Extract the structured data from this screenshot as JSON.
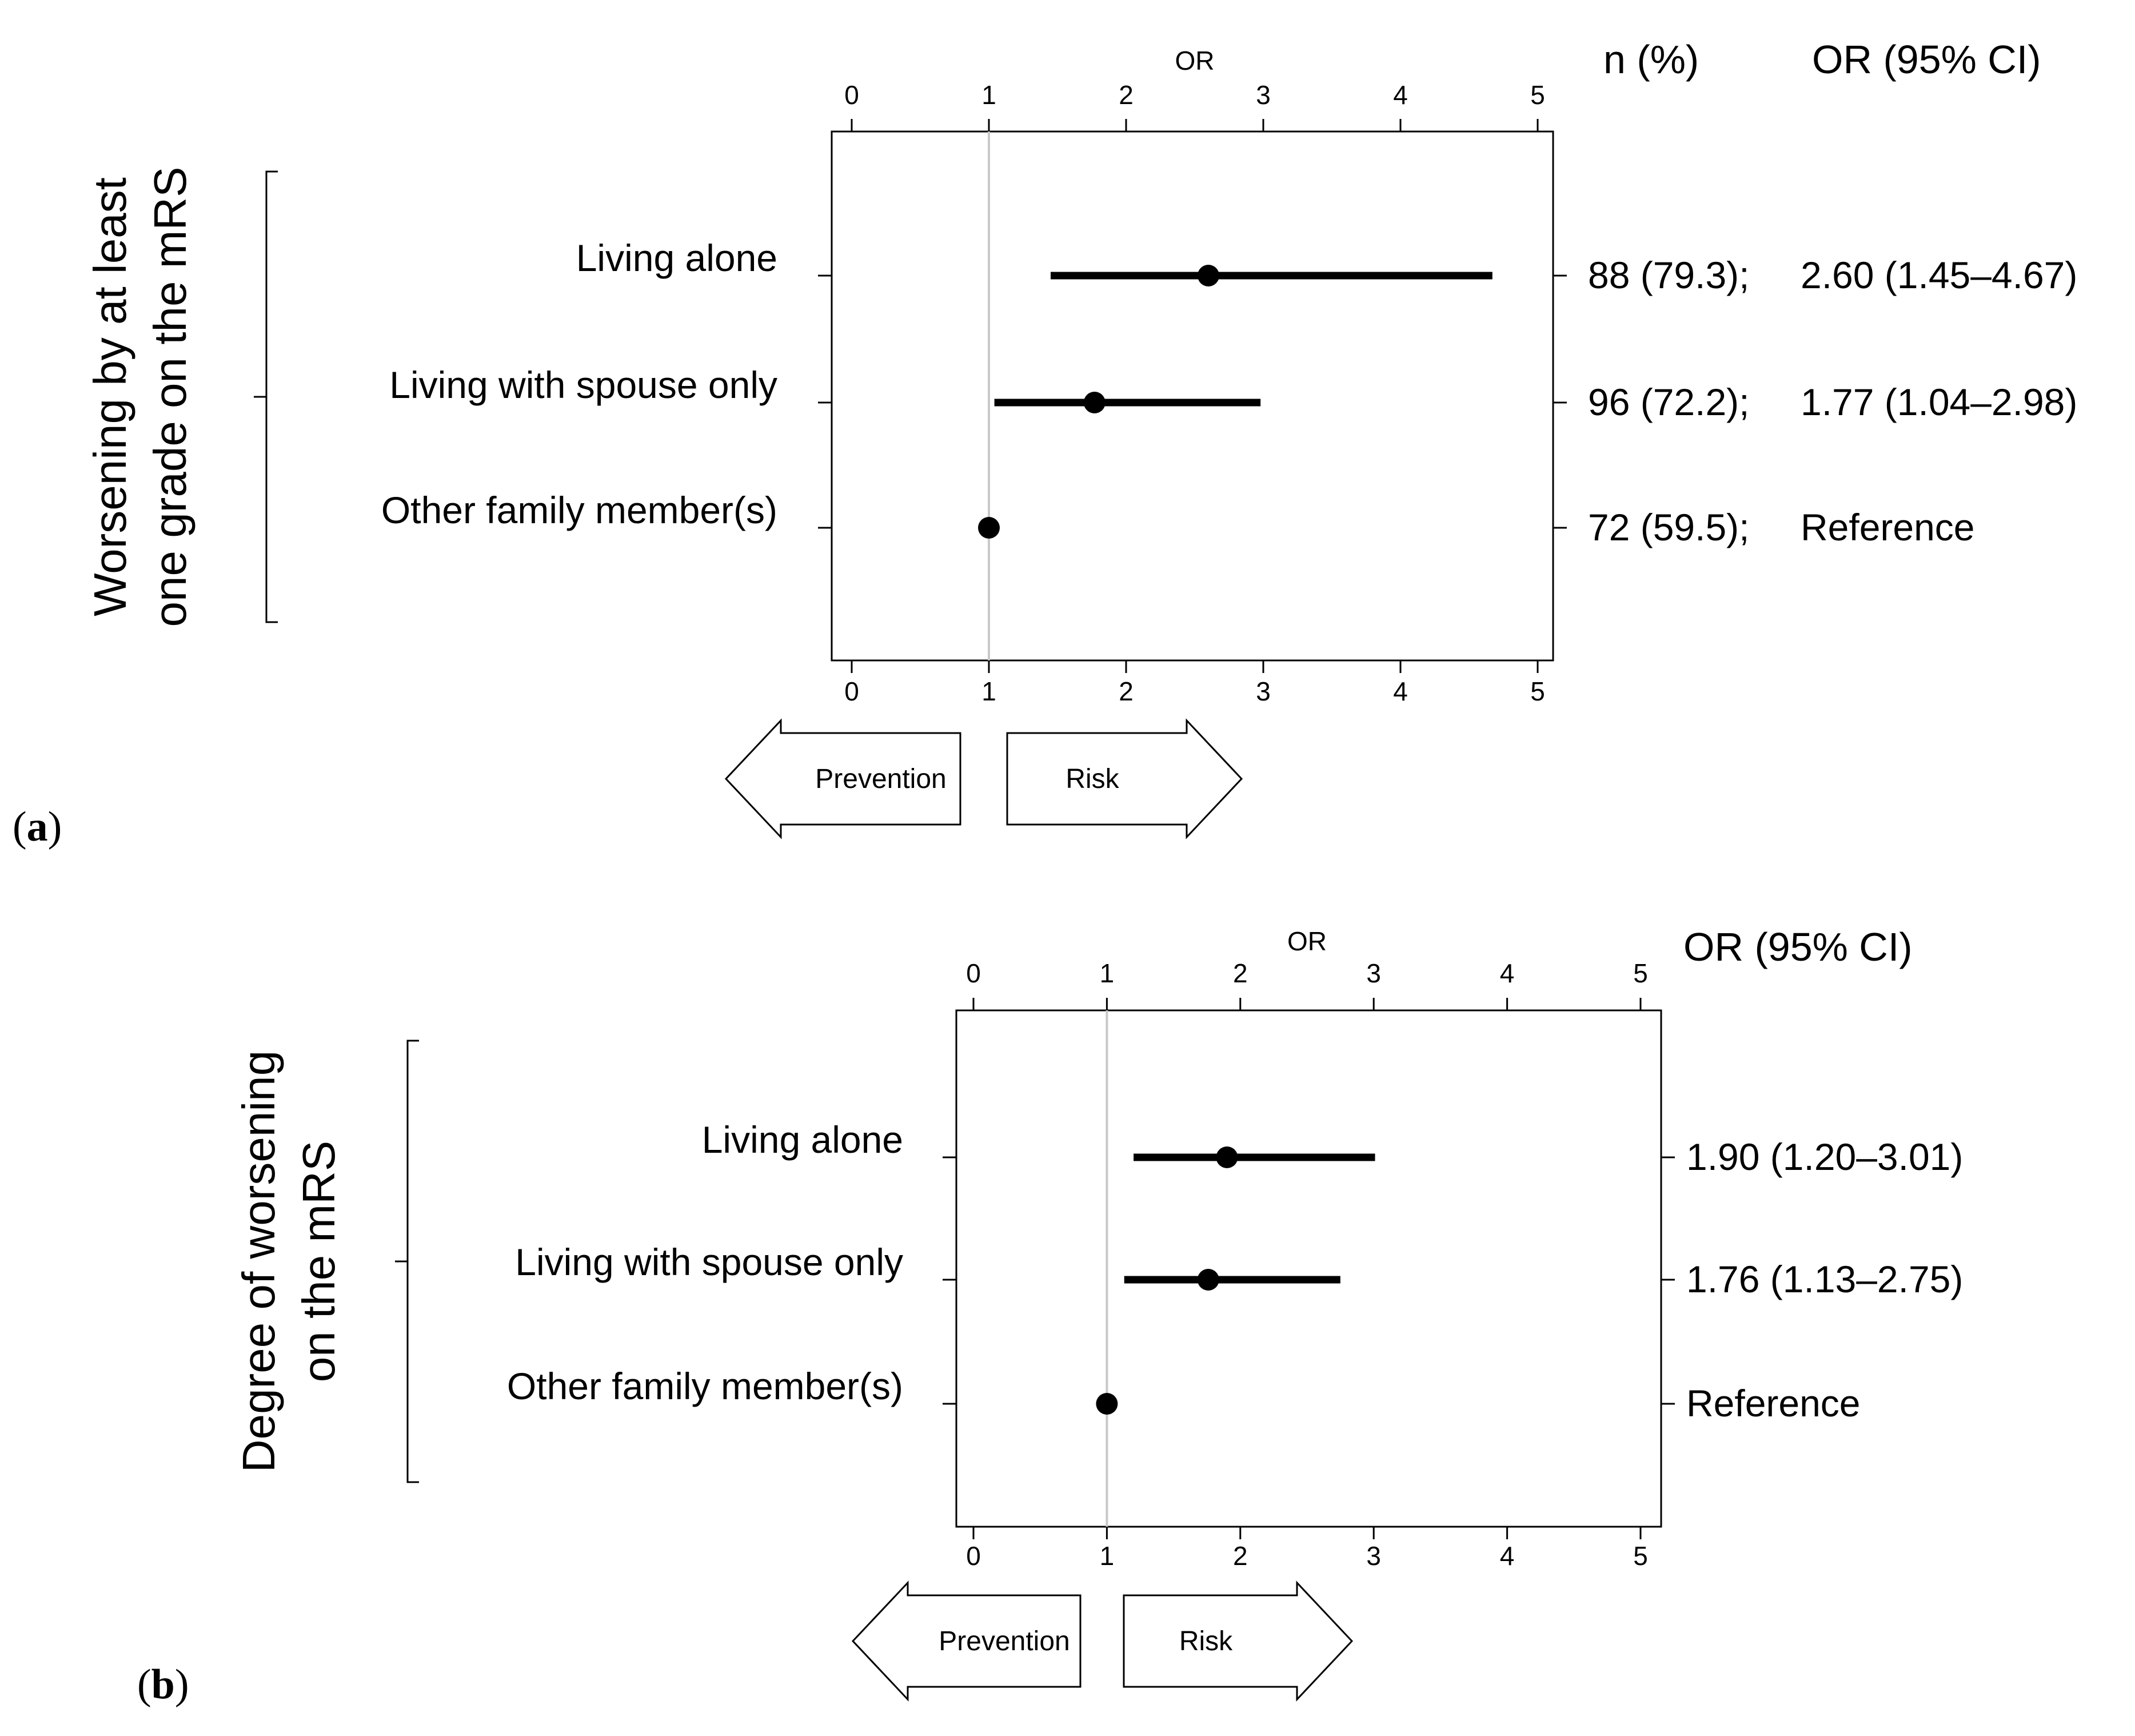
{
  "chart_data": [
    {
      "type": "forest",
      "panel_label": "(a)",
      "panel_letter": "a",
      "group_label_lines": [
        "Worsening by at least",
        "one grade on the mRS"
      ],
      "axis_label": "OR",
      "xlim": [
        0,
        5
      ],
      "ticks": [
        0,
        1,
        2,
        3,
        4,
        5
      ],
      "reference_line": 1,
      "column_headers": [
        "n (%)",
        "OR (95% CI)"
      ],
      "rows": [
        {
          "label": "Living alone",
          "or": 2.6,
          "lower": 1.45,
          "upper": 4.67,
          "n_pct": "88 (79.3);",
          "or_text": "2.60 (1.45–4.67)"
        },
        {
          "label": "Living with spouse only",
          "or": 1.77,
          "lower": 1.04,
          "upper": 2.98,
          "n_pct": "96 (72.2);",
          "or_text": "1.77 (1.04–2.98)"
        },
        {
          "label": "Other family member(s)",
          "or": 1.0,
          "lower": null,
          "upper": null,
          "n_pct": "72 (59.5);",
          "or_text": "Reference"
        }
      ],
      "arrows": {
        "left": "Prevention",
        "right": "Risk"
      }
    },
    {
      "type": "forest",
      "panel_label": "(b)",
      "panel_letter": "b",
      "group_label_lines": [
        "Degree of worsening",
        "on the mRS"
      ],
      "axis_label": "OR",
      "xlim": [
        0,
        5
      ],
      "ticks": [
        0,
        1,
        2,
        3,
        4,
        5
      ],
      "reference_line": 1,
      "column_headers": [
        "OR (95% CI)"
      ],
      "rows": [
        {
          "label": "Living alone",
          "or": 1.9,
          "lower": 1.2,
          "upper": 3.01,
          "or_text": "1.90 (1.20–3.01)"
        },
        {
          "label": "Living with spouse only",
          "or": 1.76,
          "lower": 1.13,
          "upper": 2.75,
          "or_text": "1.76 (1.13–2.75)"
        },
        {
          "label": "Other family member(s)",
          "or": 1.0,
          "lower": null,
          "upper": null,
          "or_text": "Reference"
        }
      ],
      "arrows": {
        "left": "Prevention",
        "right": "Risk"
      }
    }
  ]
}
